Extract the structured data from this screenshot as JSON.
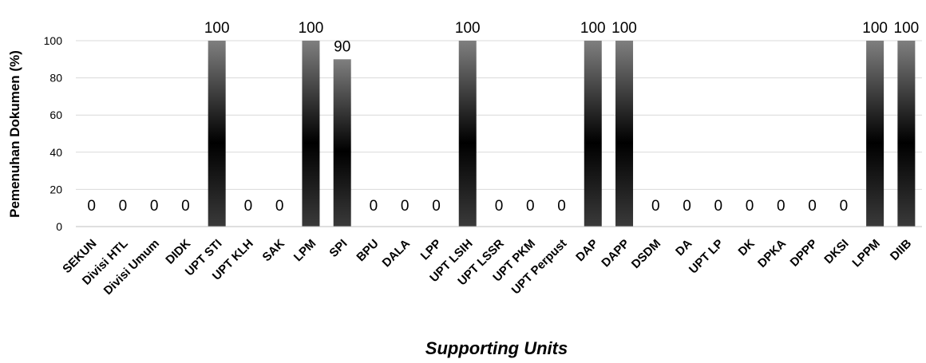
{
  "chart_data": {
    "type": "bar",
    "xlabel": "Supporting Units",
    "ylabel": "Pemenuhan Dokumen (%)",
    "ylim": [
      0,
      100
    ],
    "yticks": [
      0,
      20,
      40,
      60,
      80,
      100
    ],
    "grid": true,
    "legend": "none",
    "bar_gradient": [
      "#7f7f7f",
      "#000000",
      "#3a3a3a"
    ],
    "categories": [
      "SEKUN",
      "Divisi HTL",
      "Divisi Umum",
      "DIDK",
      "UPT STI",
      "UPT KLH",
      "SAK",
      "LPM",
      "SPI",
      "BPU",
      "DALA",
      "LPP",
      "UPT LSIH",
      "UPT LSSR",
      "UPT PKM",
      "UPT Perpust",
      "DAP",
      "DAPP",
      "DSDM",
      "DA",
      "UPT LP",
      "DK",
      "DPKA",
      "DPPP",
      "DKSI",
      "LPPM",
      "DIIB"
    ],
    "values": [
      0,
      0,
      0,
      0,
      100,
      0,
      0,
      100,
      90,
      0,
      0,
      0,
      100,
      0,
      0,
      0,
      100,
      100,
      0,
      0,
      0,
      0,
      0,
      0,
      0,
      100,
      100
    ]
  }
}
